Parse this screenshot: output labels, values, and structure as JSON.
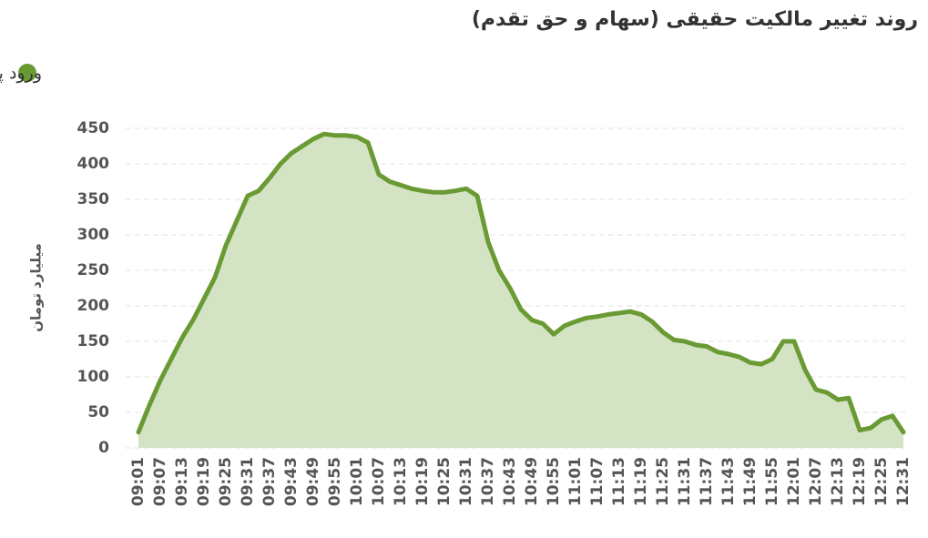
{
  "chart_data": {
    "type": "area",
    "title": "روند تغییر مالکیت حقیقی (سهام و حق تقدم)",
    "y_label": "میلیارد تومان",
    "categories": [
      "09:01",
      null,
      "09:07",
      null,
      "09:13",
      null,
      "09:19",
      null,
      "09:25",
      null,
      "09:31",
      null,
      "09:37",
      null,
      "09:43",
      null,
      "09:49",
      null,
      "09:55",
      null,
      "10:01",
      null,
      "10:07",
      null,
      "10:13",
      null,
      "10:19",
      null,
      "10:25",
      null,
      "10:31",
      null,
      "10:37",
      null,
      "10:43",
      null,
      "10:49",
      null,
      "10:55",
      null,
      "11:01",
      null,
      "11:07",
      null,
      "11:13",
      null,
      "11:19",
      null,
      "11:25",
      null,
      "11:31",
      null,
      "11:37",
      null,
      "11:43",
      null,
      "11:49",
      null,
      "11:55",
      null,
      "12:01",
      null,
      "12:07",
      null,
      "12:13",
      null,
      "12:19",
      null,
      "12:25",
      null,
      "12:31"
    ],
    "series": [
      {
        "name": "ورود پول",
        "color": "#6a9a34",
        "fill": "#d3e3c3",
        "values": [
          22,
          60,
          95,
          125,
          155,
          180,
          210,
          240,
          285,
          320,
          355,
          362,
          380,
          400,
          415,
          425,
          435,
          442,
          440,
          440,
          438,
          430,
          385,
          375,
          370,
          365,
          362,
          360,
          360,
          362,
          365,
          355,
          290,
          250,
          225,
          195,
          180,
          175,
          160,
          172,
          178,
          183,
          185,
          188,
          190,
          192,
          188,
          178,
          163,
          152,
          150,
          145,
          143,
          135,
          132,
          128,
          120,
          118,
          125,
          150,
          150,
          110,
          82,
          78,
          68,
          70,
          25,
          28,
          40,
          45,
          22
        ]
      }
    ],
    "ylim": [
      0,
      450
    ],
    "yticks": [
      0,
      50,
      100,
      150,
      200,
      250,
      300,
      350,
      400,
      450
    ],
    "grid": true,
    "legend": "top-left"
  }
}
